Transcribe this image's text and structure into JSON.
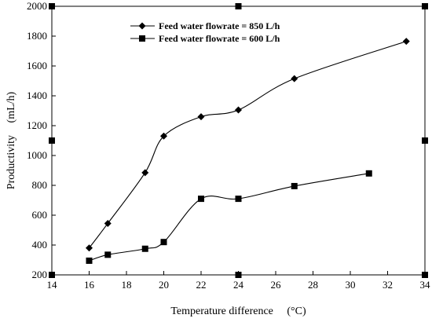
{
  "chart_data": {
    "type": "line",
    "title": "",
    "xlabel": "Temperature difference",
    "xlabel_unit": "(°C)",
    "ylabel": "Productivity",
    "ylabel_unit": "(mL/h)",
    "xlim": [
      14,
      34
    ],
    "ylim": [
      200,
      2000
    ],
    "xticks": [
      14,
      16,
      18,
      20,
      22,
      24,
      26,
      28,
      30,
      32,
      34
    ],
    "yticks": [
      200,
      400,
      600,
      800,
      1000,
      1200,
      1400,
      1600,
      1800,
      2000
    ],
    "grid": false,
    "legend_position": "top-left",
    "series": [
      {
        "name": "Feed water flowrate = 850 L/h",
        "marker": "diamond",
        "color": "#000000",
        "x": [
          16,
          17,
          19,
          20,
          22,
          24,
          27,
          33
        ],
        "y": [
          380,
          545,
          885,
          1130,
          1260,
          1305,
          1515,
          1765
        ]
      },
      {
        "name": "Feed water flowrate = 600 L/h",
        "marker": "square",
        "color": "#000000",
        "x": [
          16,
          17,
          19,
          20,
          22,
          24,
          27,
          31
        ],
        "y": [
          295,
          335,
          375,
          420,
          710,
          710,
          795,
          880
        ]
      }
    ]
  }
}
